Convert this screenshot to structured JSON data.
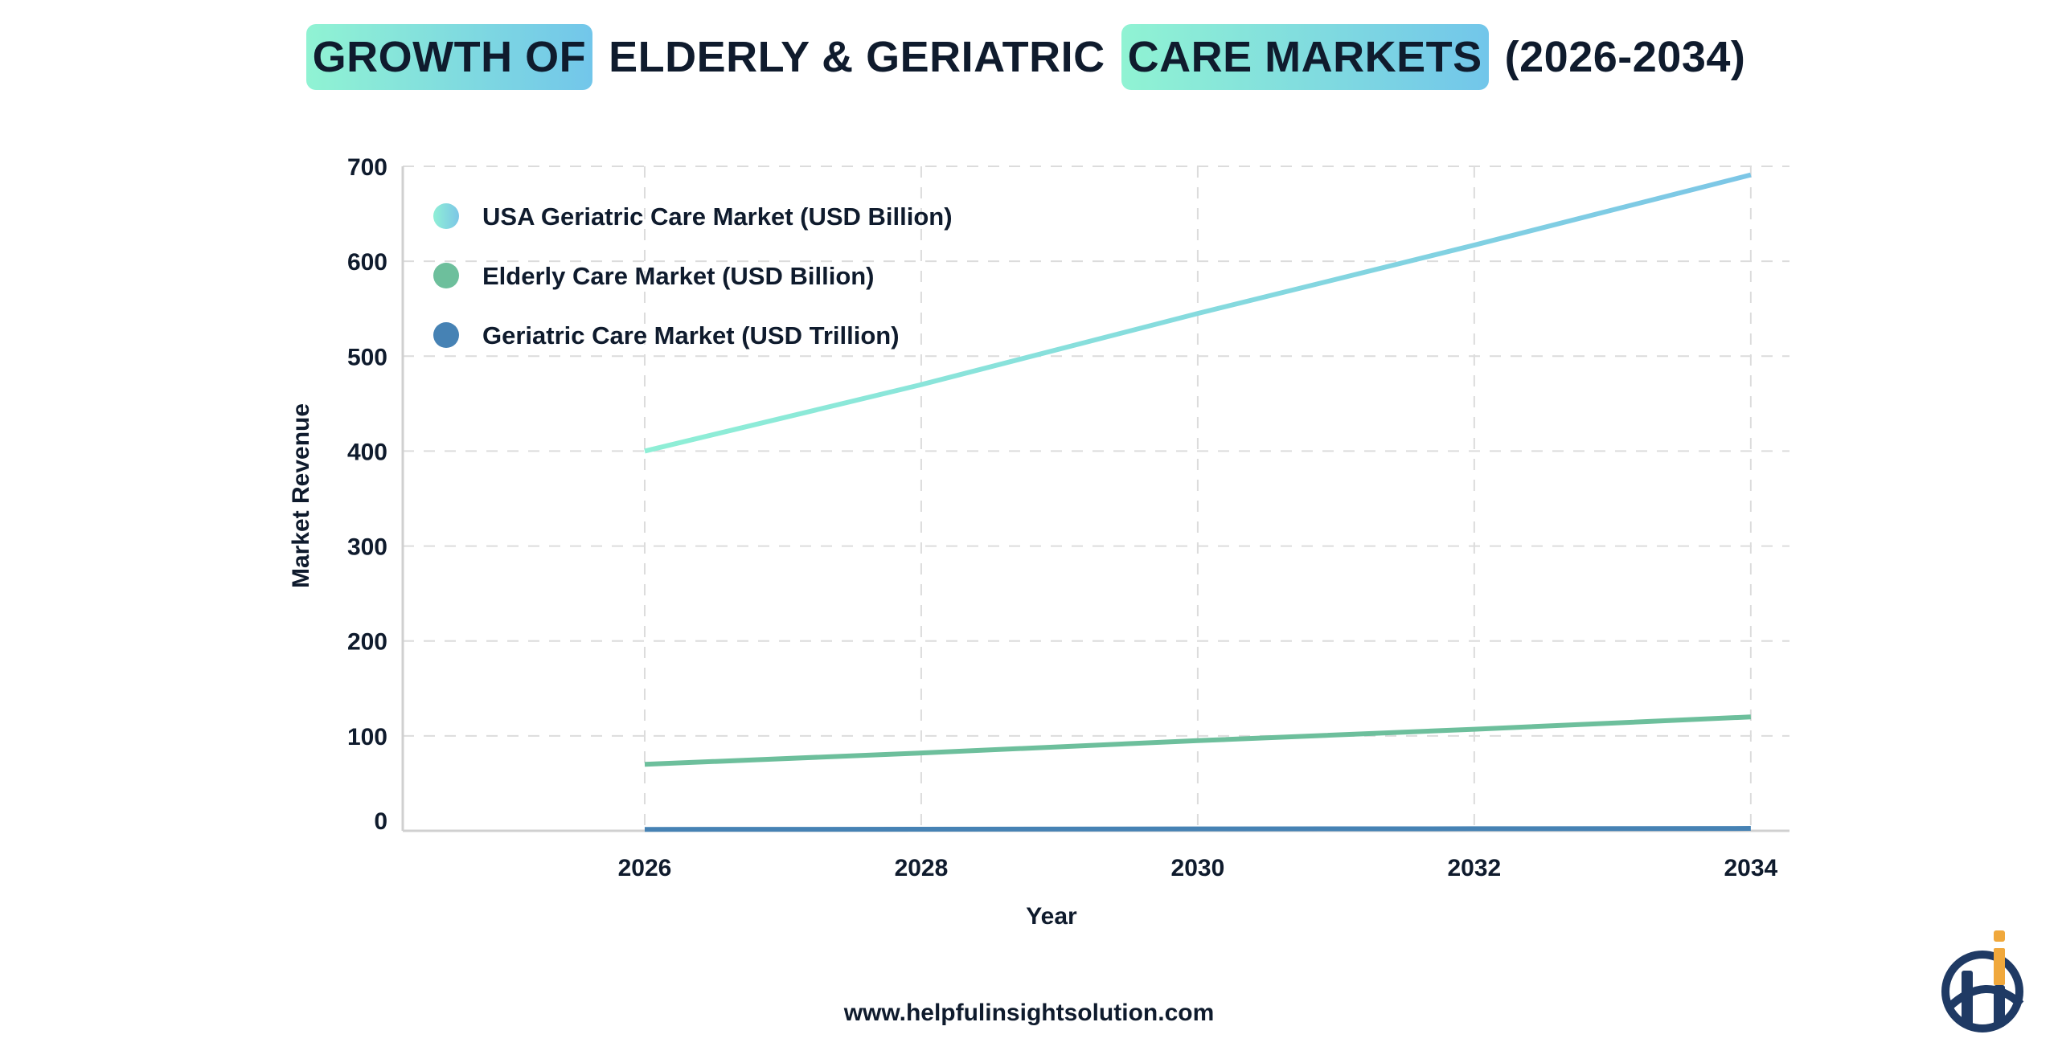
{
  "title": {
    "parts": [
      {
        "text": "GROWTH OF",
        "highlight": true
      },
      {
        "text": "ELDERLY & GERIATRIC",
        "highlight": false
      },
      {
        "text": "CARE MARKETS",
        "highlight": true
      },
      {
        "text": "(2026-2034)",
        "highlight": false
      }
    ],
    "highlight_gradient": [
      "#90f3d3",
      "#72c6ea"
    ]
  },
  "chart_data": {
    "type": "line",
    "title": "GROWTH OF ELDERLY & GERIATRIC CARE MARKETS (2026-2034)",
    "xlabel": "Year",
    "ylabel": "Market Revenue",
    "x": [
      2026,
      2028,
      2030,
      2032,
      2034
    ],
    "x_ticks": [
      "2026",
      "2028",
      "2030",
      "2032",
      "2034"
    ],
    "y_ticks": [
      "0",
      "100",
      "200",
      "300",
      "400",
      "500",
      "600",
      "700"
    ],
    "xlim": [
      2024.25,
      2034.28
    ],
    "ylim": [
      0,
      700
    ],
    "grid": true,
    "legend": "top-left",
    "series": [
      {
        "name": "USA Geriatric Care Market (USD Billion)",
        "values": [
          400,
          470,
          545,
          617,
          691
        ],
        "color": "#8fefd6",
        "color_end": "#7cc6e6"
      },
      {
        "name": "Elderly Care Market (USD Billion)",
        "values": [
          70,
          82,
          95,
          107,
          120
        ],
        "color": "#6dbf9c"
      },
      {
        "name": "Geriatric Care Market (USD Trillion)",
        "values": [
          1.5,
          1.7,
          2.0,
          2.2,
          2.5
        ],
        "color": "#4682b4"
      }
    ]
  },
  "footer": {
    "website": "www.helpfulinsightsolution.com"
  },
  "logo": {
    "text": "hi",
    "colors": [
      "#1f3a64",
      "#f0a83c"
    ]
  }
}
